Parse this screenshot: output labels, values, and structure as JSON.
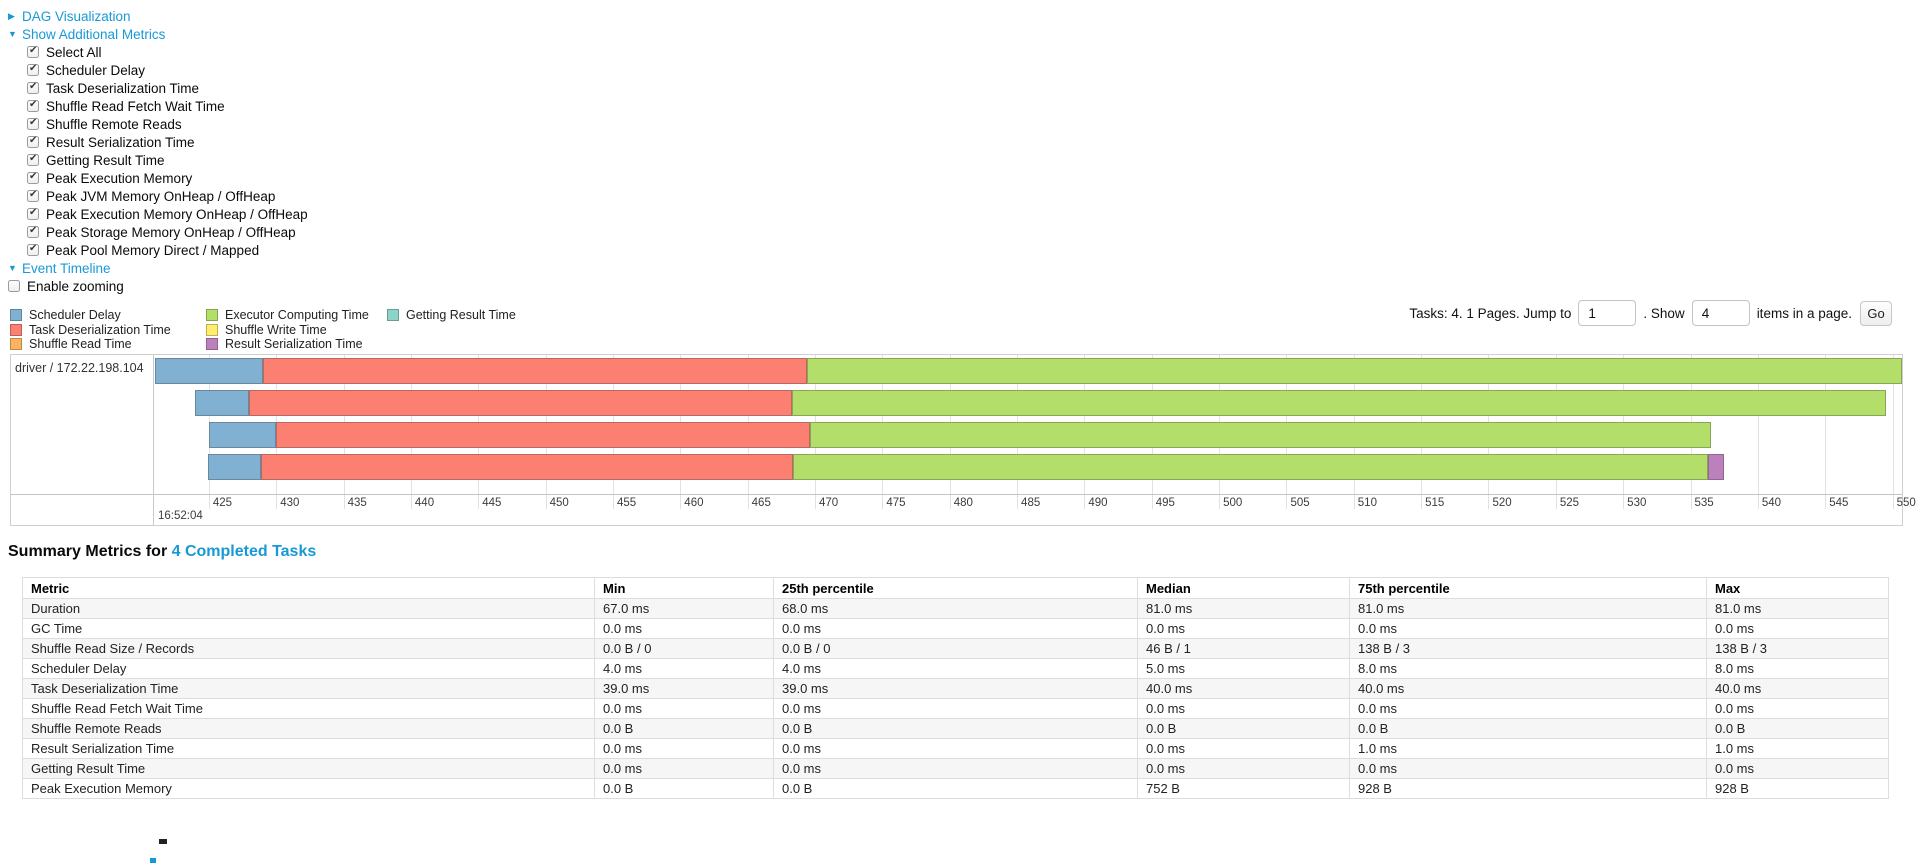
{
  "colors": {
    "link_blue": "#1899d6",
    "scheduler_delay": "#80B1D3",
    "task_deserialization": "#FB8072",
    "shuffle_read": "#FDB462",
    "executor_computing": "#B3DE69",
    "shuffle_write": "#FFED6F",
    "result_serialization": "#BC80BD",
    "getting_result": "#8DD3C7"
  },
  "metrics_panel": {
    "dag_toggle": {
      "label": "DAG Visualization",
      "state": "collapsed"
    },
    "additional_metrics_toggle": {
      "label": "Show Additional Metrics",
      "state": "expanded"
    },
    "checkboxes": [
      {
        "label": "Select All",
        "checked": true
      },
      {
        "label": "Scheduler Delay",
        "checked": true
      },
      {
        "label": "Task Deserialization Time",
        "checked": true
      },
      {
        "label": "Shuffle Read Fetch Wait Time",
        "checked": true
      },
      {
        "label": "Shuffle Remote Reads",
        "checked": true
      },
      {
        "label": "Result Serialization Time",
        "checked": true
      },
      {
        "label": "Getting Result Time",
        "checked": true
      },
      {
        "label": "Peak Execution Memory",
        "checked": true
      },
      {
        "label": "Peak JVM Memory OnHeap / OffHeap",
        "checked": true
      },
      {
        "label": "Peak Execution Memory OnHeap / OffHeap",
        "checked": true
      },
      {
        "label": "Peak Storage Memory OnHeap / OffHeap",
        "checked": true
      },
      {
        "label": "Peak Pool Memory Direct / Mapped",
        "checked": true
      }
    ],
    "event_timeline_toggle": {
      "label": "Event Timeline",
      "state": "expanded"
    },
    "enable_zooming": {
      "label": "Enable zooming",
      "checked": false
    }
  },
  "legend": {
    "items": [
      {
        "key": "scheduler_delay",
        "label": "Scheduler Delay",
        "color": "#80B1D3",
        "col": 0
      },
      {
        "key": "task_deserialization",
        "label": "Task Deserialization Time",
        "color": "#FB8072",
        "col": 0
      },
      {
        "key": "shuffle_read",
        "label": "Shuffle Read Time",
        "color": "#FDB462",
        "col": 0
      },
      {
        "key": "executor_computing",
        "label": "Executor Computing Time",
        "color": "#B3DE69",
        "col": 1
      },
      {
        "key": "shuffle_write",
        "label": "Shuffle Write Time",
        "color": "#FFED6F",
        "col": 1
      },
      {
        "key": "result_serialization",
        "label": "Result Serialization Time",
        "color": "#BC80BD",
        "col": 1
      },
      {
        "key": "getting_result",
        "label": "Getting Result Time",
        "color": "#8DD3C7",
        "col": 2
      }
    ],
    "col_offsets": [
      0,
      196,
      377
    ]
  },
  "pagination": {
    "summary": "Tasks: 4. 1 Pages. Jump to",
    "jump_value": "1",
    "show_label": ". Show",
    "show_value": "4",
    "items_label": "items in a page.",
    "go_label": "Go"
  },
  "chart_data": {
    "type": "timeline",
    "row_label": "driver / 172.22.198.104",
    "axis": {
      "min": 421.0,
      "max": 550.7,
      "ticks": [
        "425",
        "430",
        "435",
        "440",
        "445",
        "450",
        "455",
        "460",
        "465",
        "470",
        "475",
        "480",
        "485",
        "490",
        "495",
        "500",
        "505",
        "510",
        "515",
        "520",
        "525",
        "530",
        "535",
        "540",
        "545",
        "550"
      ],
      "tick_values": [
        425,
        430,
        435,
        440,
        445,
        450,
        455,
        460,
        465,
        470,
        475,
        480,
        485,
        490,
        495,
        500,
        505,
        510,
        515,
        520,
        525,
        530,
        535,
        540,
        545,
        550
      ],
      "time_label": "16:52:04"
    },
    "tasks": [
      {
        "segments": [
          {
            "key": "scheduler_delay",
            "start": 421.0,
            "end": 429.0
          },
          {
            "key": "task_deserialization",
            "start": 429.0,
            "end": 469.4
          },
          {
            "key": "executor_computing",
            "start": 469.4,
            "end": 550.7
          }
        ]
      },
      {
        "segments": [
          {
            "key": "scheduler_delay",
            "start": 424.0,
            "end": 428.0
          },
          {
            "key": "task_deserialization",
            "start": 428.0,
            "end": 468.3
          },
          {
            "key": "executor_computing",
            "start": 468.3,
            "end": 549.5
          }
        ]
      },
      {
        "segments": [
          {
            "key": "scheduler_delay",
            "start": 425.0,
            "end": 430.0
          },
          {
            "key": "task_deserialization",
            "start": 430.0,
            "end": 469.6
          },
          {
            "key": "executor_computing",
            "start": 469.6,
            "end": 536.5
          }
        ]
      },
      {
        "segments": [
          {
            "key": "scheduler_delay",
            "start": 424.9,
            "end": 428.9
          },
          {
            "key": "task_deserialization",
            "start": 428.9,
            "end": 468.4
          },
          {
            "key": "executor_computing",
            "start": 468.4,
            "end": 536.3
          },
          {
            "key": "result_serialization",
            "start": 536.3,
            "end": 537.5
          }
        ]
      }
    ]
  },
  "summary": {
    "title_prefix": "Summary Metrics for ",
    "title_link": "4 Completed Tasks",
    "table": {
      "columns": [
        "Metric",
        "Min",
        "25th percentile",
        "Median",
        "75th percentile",
        "Max"
      ],
      "rows": [
        {
          "metric": "Duration",
          "values": [
            "67.0 ms",
            "68.0 ms",
            "81.0 ms",
            "81.0 ms",
            "81.0 ms"
          ]
        },
        {
          "metric": "GC Time",
          "values": [
            "0.0 ms",
            "0.0 ms",
            "0.0 ms",
            "0.0 ms",
            "0.0 ms"
          ]
        },
        {
          "metric": "Shuffle Read Size / Records",
          "values": [
            "0.0 B / 0",
            "0.0 B / 0",
            "46 B / 1",
            "138 B / 3",
            "138 B / 3"
          ]
        },
        {
          "metric": "Scheduler Delay",
          "values": [
            "4.0 ms",
            "4.0 ms",
            "5.0 ms",
            "8.0 ms",
            "8.0 ms"
          ]
        },
        {
          "metric": "Task Deserialization Time",
          "values": [
            "39.0 ms",
            "39.0 ms",
            "40.0 ms",
            "40.0 ms",
            "40.0 ms"
          ]
        },
        {
          "metric": "Shuffle Read Fetch Wait Time",
          "values": [
            "0.0 ms",
            "0.0 ms",
            "0.0 ms",
            "0.0 ms",
            "0.0 ms"
          ]
        },
        {
          "metric": "Shuffle Remote Reads",
          "values": [
            "0.0 B",
            "0.0 B",
            "0.0 B",
            "0.0 B",
            "0.0 B"
          ]
        },
        {
          "metric": "Result Serialization Time",
          "values": [
            "0.0 ms",
            "0.0 ms",
            "0.0 ms",
            "1.0 ms",
            "1.0 ms"
          ]
        },
        {
          "metric": "Getting Result Time",
          "values": [
            "0.0 ms",
            "0.0 ms",
            "0.0 ms",
            "0.0 ms",
            "0.0 ms"
          ]
        },
        {
          "metric": "Peak Execution Memory",
          "values": [
            "0.0 B",
            "0.0 B",
            "752 B",
            "928 B",
            "928 B"
          ]
        }
      ]
    }
  }
}
